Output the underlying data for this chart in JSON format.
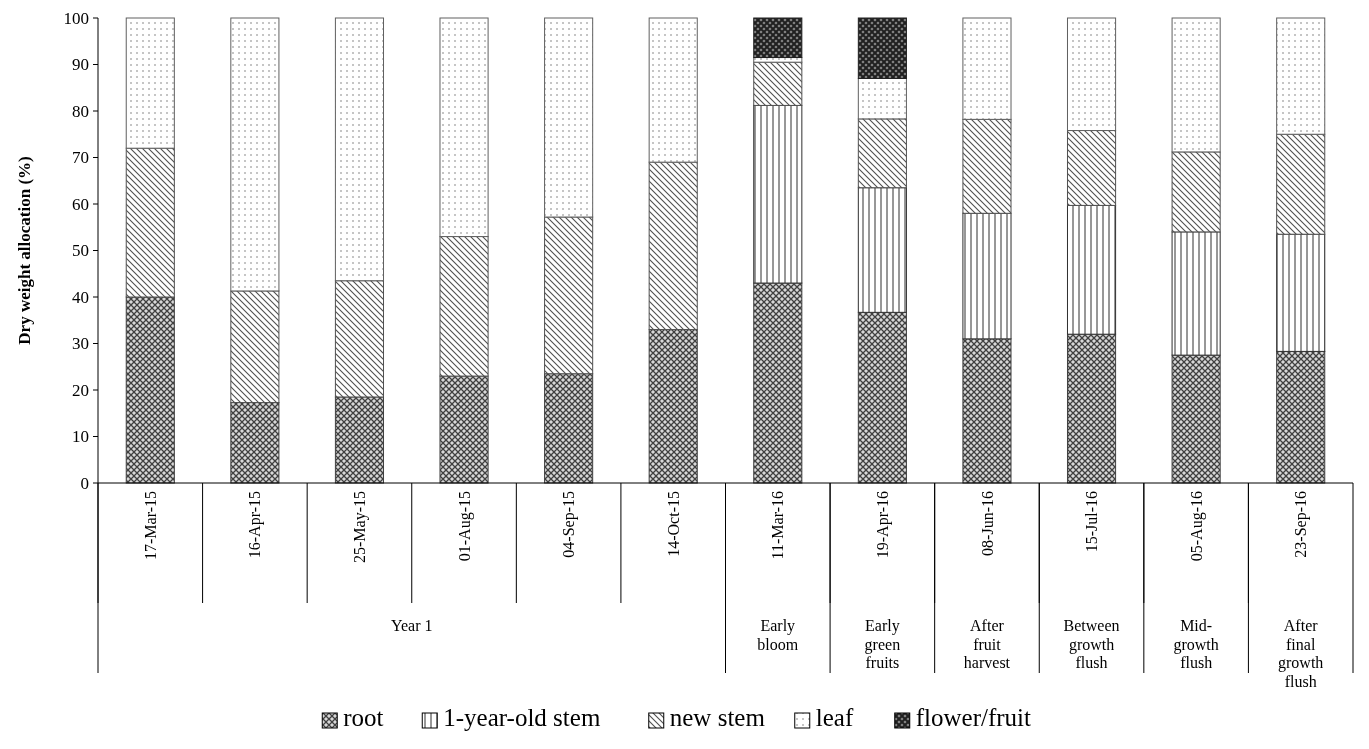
{
  "chart_data": {
    "type": "bar",
    "stacked": true,
    "ylabel": "Dry weight allocation (%)",
    "categories": [
      "17-Mar-15",
      "16-Apr-15",
      "25-May-15",
      "01-Aug-15",
      "04-Sep-15",
      "14-Oct-15",
      "11-Mar-16",
      "19-Apr-16",
      "08-Jun-16",
      "15-Jul-16",
      "05-Aug-16",
      "23-Sep-16"
    ],
    "series": [
      {
        "name": "root",
        "color": "#404040",
        "values": [
          40,
          17.3,
          18.5,
          23,
          23.5,
          33,
          43,
          36.7,
          31,
          32,
          27.5,
          28.3
        ]
      },
      {
        "name": "1-year-old stem",
        "color": "#303030",
        "values": [
          0,
          0,
          0,
          0,
          0,
          0,
          38.2,
          26.8,
          27,
          27.7,
          26.5,
          25.2
        ]
      },
      {
        "name": "new stem",
        "color": "#505050",
        "values": [
          32,
          24,
          25,
          30,
          33.7,
          36,
          9.3,
          14.8,
          20.2,
          16.1,
          17.2,
          21.5
        ]
      },
      {
        "name": "leaf",
        "color": "#606060",
        "values": [
          28,
          58.7,
          56.5,
          47,
          42.8,
          31,
          1,
          8.7,
          21.8,
          24.2,
          28.8,
          25
        ]
      },
      {
        "name": "flower/fruit",
        "color": "#202020",
        "values": [
          0,
          0,
          0,
          0,
          0,
          0,
          8.5,
          13,
          0,
          0,
          0,
          0
        ]
      }
    ],
    "ylim": [
      0,
      100
    ],
    "yticks": [
      0,
      10,
      20,
      30,
      40,
      50,
      60,
      70,
      80,
      90,
      100
    ],
    "grid": false,
    "legend": "bottom",
    "annotations": [
      "Year 1",
      "Early bloom",
      "Early green fruits",
      "After fruit harvest",
      "Between growth flush",
      "Mid- growth flush",
      "After final growth flush"
    ]
  }
}
